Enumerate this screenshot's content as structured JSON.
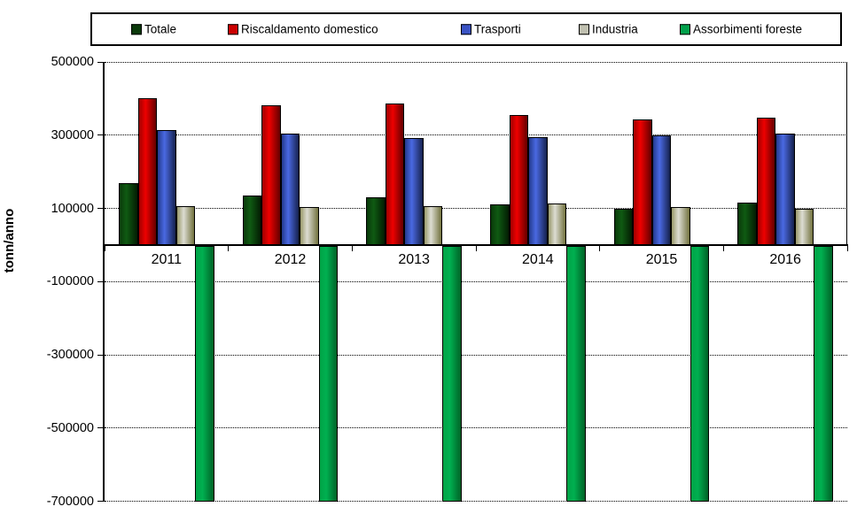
{
  "chart_data": {
    "type": "bar",
    "title": "",
    "ylabel": "tonn/anno",
    "xlabel": "",
    "categories": [
      "2011",
      "2012",
      "2013",
      "2014",
      "2015",
      "2016"
    ],
    "series": [
      {
        "name": "Totale",
        "swatch_color": "#0b3b0b",
        "fill": [
          "#0a3a0a",
          "#0f5a12",
          "#031d03"
        ],
        "values": [
          168000,
          134000,
          131000,
          110000,
          98000,
          117000
        ]
      },
      {
        "name": "Riscaldamento domestico",
        "swatch_color": "#cc0000",
        "fill": [
          "#a00000",
          "#ee0000",
          "#640000"
        ],
        "values": [
          400000,
          381000,
          386000,
          356000,
          344000,
          348000
        ]
      },
      {
        "name": "Trasporti",
        "swatch_color": "#3a53c4",
        "fill": [
          "#233a8c",
          "#4a69e2",
          "#16224e"
        ],
        "values": [
          313000,
          305000,
          292000,
          295000,
          299000,
          304000
        ]
      },
      {
        "name": "Industria",
        "swatch_color": "#c0c0b0",
        "fill": [
          "#99996a",
          "#dcdcd2",
          "#72723e"
        ],
        "values": [
          106000,
          103000,
          107000,
          113000,
          103000,
          100000
        ]
      },
      {
        "name": "Assorbimenti foreste",
        "swatch_color": "#00a14b",
        "fill": [
          "#00a347",
          "#00b050",
          "#006227"
        ],
        "values": [
          -700000,
          -700000,
          -700000,
          -700000,
          -700000,
          -700000
        ]
      }
    ],
    "ylim": [
      -700000,
      500000
    ],
    "yticks": [
      500000,
      300000,
      100000,
      -100000,
      -300000,
      -500000,
      -700000
    ],
    "grid": "horizontal-dashed",
    "legend_position": "top",
    "axis_color": "#000000",
    "background_color": "#ffffff"
  }
}
